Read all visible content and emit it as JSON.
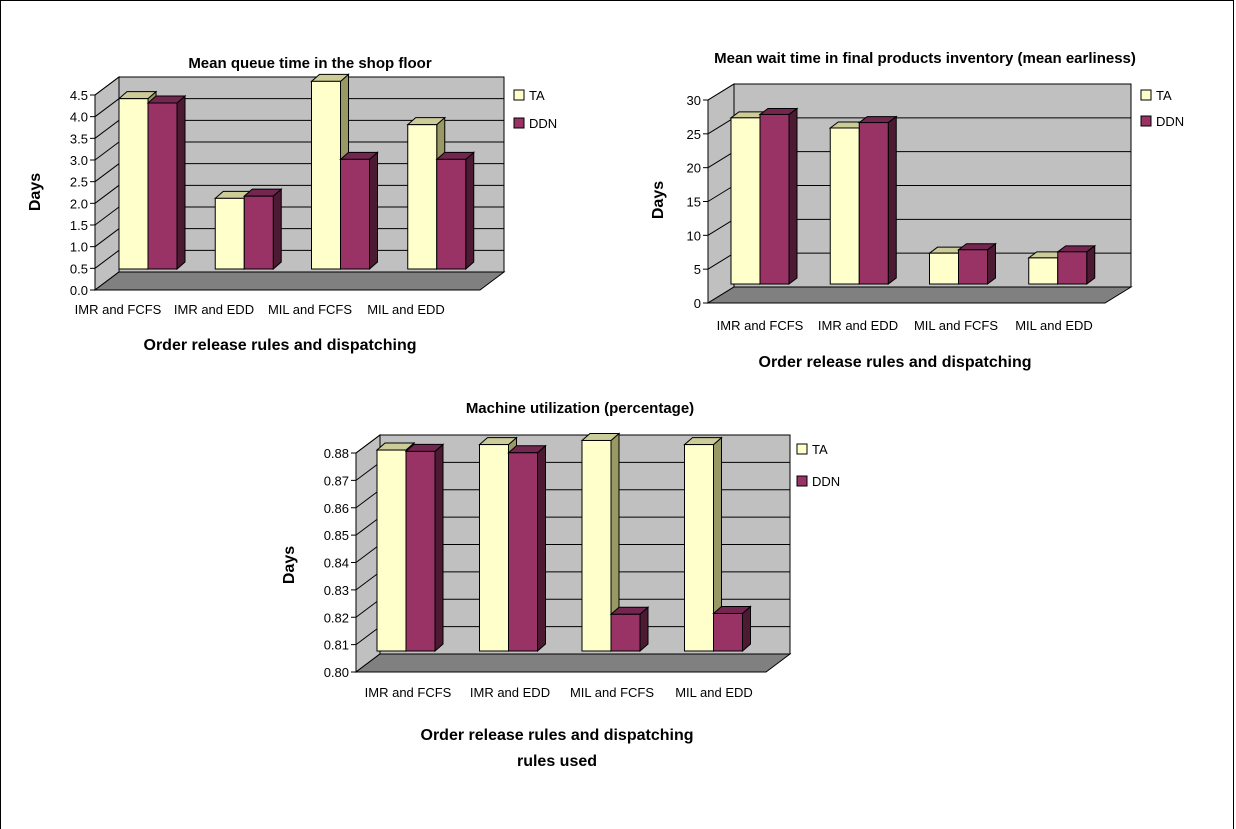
{
  "colors": {
    "ta_front": "#FFFFCC",
    "ta_side": "#999966",
    "ta_top": "#CCCC99",
    "ddn_front": "#993366",
    "ddn_side": "#4D1A33",
    "ddn_top": "#732650",
    "wall": "#C0C0C0",
    "floor": "#808080"
  },
  "chart_data": [
    {
      "type": "bar",
      "title": "Mean queue time in the shop floor",
      "xlabel": "Order release rules and dispatching",
      "ylabel": "Days",
      "categories": [
        "IMR and FCFS",
        "IMR and EDD",
        "MIL and FCFS",
        "MIL and EDD"
      ],
      "series": [
        {
          "name": "TA",
          "values": [
            4.0,
            1.7,
            4.4,
            3.4
          ]
        },
        {
          "name": "DDN",
          "values": [
            3.9,
            1.75,
            2.6,
            2.6
          ]
        }
      ],
      "ylim": [
        0,
        4.5
      ],
      "yticks": [
        "0.0",
        "0.5",
        "1.0",
        "1.5",
        "2.0",
        "2.5",
        "3.0",
        "3.5",
        "4.0",
        "4.5"
      ],
      "legend_labels": [
        "TA",
        "DDN"
      ],
      "legend_position": "right",
      "grid": true
    },
    {
      "type": "bar",
      "title": "Mean wait time in final products inventory (mean earliness)",
      "xlabel": "Order release rules and dispatching",
      "ylabel": "Days",
      "categories": [
        "IMR and FCFS",
        "IMR and EDD",
        "MIL and FCFS",
        "MIL and EDD"
      ],
      "series": [
        {
          "name": "TA",
          "values": [
            25.0,
            23.5,
            5.0,
            4.3
          ]
        },
        {
          "name": "DDN",
          "values": [
            25.5,
            24.3,
            5.5,
            5.2
          ]
        }
      ],
      "ylim": [
        0,
        30
      ],
      "yticks": [
        "0",
        "5",
        "10",
        "15",
        "20",
        "25",
        "30"
      ],
      "legend_labels": [
        "TA",
        "DDN"
      ],
      "legend_position": "right",
      "grid": true
    },
    {
      "type": "bar",
      "title": "Machine utilization (percentage)",
      "xlabel": "Order release rules and dispatching rules used",
      "ylabel": "Days",
      "categories": [
        "IMR and FCFS",
        "IMR and EDD",
        "MIL and FCFS",
        "MIL and EDD"
      ],
      "series": [
        {
          "name": "TA",
          "values": [
            0.8745,
            0.8765,
            0.878,
            0.8765
          ]
        },
        {
          "name": "DDN",
          "values": [
            0.874,
            0.8735,
            0.8145,
            0.8148
          ]
        }
      ],
      "ylim": [
        0.8,
        0.88
      ],
      "yticks": [
        "0.80",
        "0.81",
        "0.82",
        "0.83",
        "0.84",
        "0.85",
        "0.86",
        "0.87",
        "0.88"
      ],
      "legend_labels": [
        "TA",
        "DDN"
      ],
      "legend_position": "right",
      "grid": true
    }
  ]
}
